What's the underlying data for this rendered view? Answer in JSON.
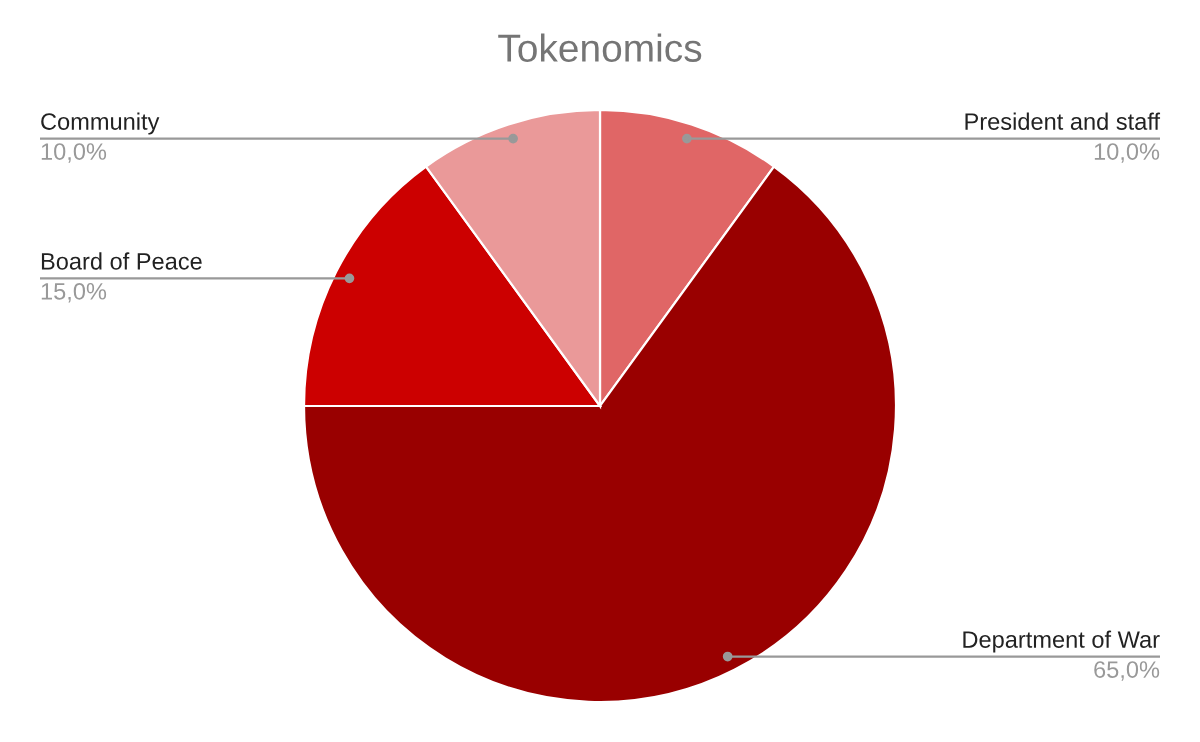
{
  "chart_data": {
    "type": "pie",
    "title": "Tokenomics",
    "categories": [
      "President and staff",
      "Department of War",
      "Board of Peace",
      "Community"
    ],
    "values": [
      10,
      65,
      15,
      10
    ],
    "colors": [
      "#e06666",
      "#990000",
      "#cc0000",
      "#ea9999"
    ],
    "value_labels": [
      "10,0%",
      "65,0%",
      "15,0%",
      "10,0%"
    ]
  }
}
